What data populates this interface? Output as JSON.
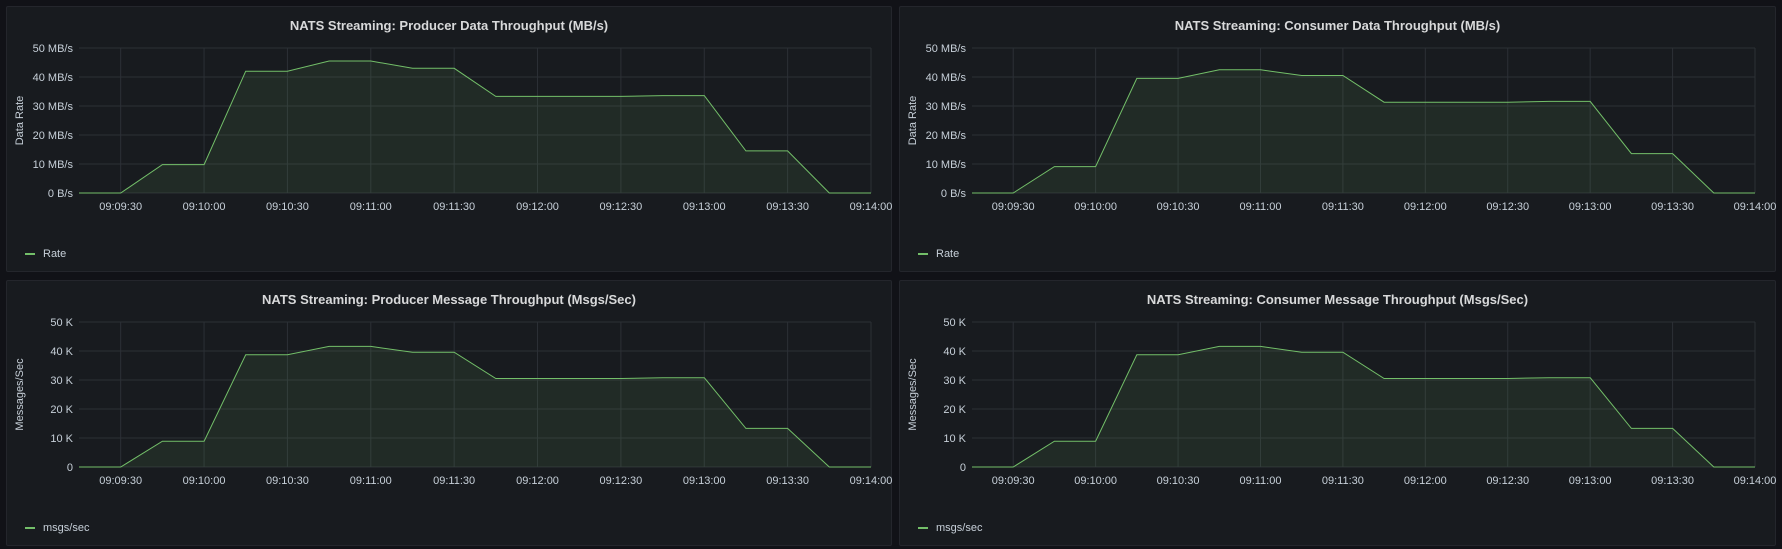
{
  "theme": {
    "line_color": "#73bf69",
    "fill_color": "#73bf69",
    "grid_color": "#2c3036",
    "tick_color": "#c7d0d9"
  },
  "chart_data": [
    {
      "type": "area",
      "title": "NATS Streaming: Producer Data Throughput (MB/s)",
      "ylabel": "Data Rate",
      "xlabel": "",
      "xlim": [
        "09:09:15",
        "09:14:00"
      ],
      "ylim": [
        0,
        50
      ],
      "yticks": [
        "0 B/s",
        "10 MB/s",
        "20 MB/s",
        "30 MB/s",
        "40 MB/s",
        "50 MB/s"
      ],
      "xticks": [
        "09:09:30",
        "09:10:00",
        "09:10:30",
        "09:11:00",
        "09:11:30",
        "09:12:00",
        "09:12:30",
        "09:13:00",
        "09:13:30",
        "09:14:00"
      ],
      "grid": true,
      "legend": "bottom-left",
      "series": [
        {
          "name": "Rate",
          "x": [
            "09:09:15",
            "09:09:30",
            "09:09:45",
            "09:10:00",
            "09:10:15",
            "09:10:30",
            "09:10:45",
            "09:11:00",
            "09:11:15",
            "09:11:30",
            "09:11:45",
            "09:12:00",
            "09:12:15",
            "09:12:30",
            "09:12:45",
            "09:13:00",
            "09:13:15",
            "09:13:30",
            "09:13:45",
            "09:14:00"
          ],
          "values": [
            0,
            0,
            9.8,
            9.8,
            42,
            42,
            45.5,
            45.5,
            43,
            43,
            33.3,
            33.3,
            33.3,
            33.3,
            33.6,
            33.6,
            14.5,
            14.5,
            0,
            0
          ]
        }
      ]
    },
    {
      "type": "area",
      "title": "NATS Streaming: Consumer Data Throughput (MB/s)",
      "ylabel": "Data Rate",
      "xlabel": "",
      "xlim": [
        "09:09:15",
        "09:14:00"
      ],
      "ylim": [
        0,
        50
      ],
      "yticks": [
        "0 B/s",
        "10 MB/s",
        "20 MB/s",
        "30 MB/s",
        "40 MB/s",
        "50 MB/s"
      ],
      "xticks": [
        "09:09:30",
        "09:10:00",
        "09:10:30",
        "09:11:00",
        "09:11:30",
        "09:12:00",
        "09:12:30",
        "09:13:00",
        "09:13:30",
        "09:14:00"
      ],
      "grid": true,
      "legend": "bottom-left",
      "series": [
        {
          "name": "Rate",
          "x": [
            "09:09:15",
            "09:09:30",
            "09:09:45",
            "09:10:00",
            "09:10:15",
            "09:10:30",
            "09:10:45",
            "09:11:00",
            "09:11:15",
            "09:11:30",
            "09:11:45",
            "09:12:00",
            "09:12:15",
            "09:12:30",
            "09:12:45",
            "09:13:00",
            "09:13:15",
            "09:13:30",
            "09:13:45",
            "09:14:00"
          ],
          "values": [
            0,
            0,
            9.1,
            9.1,
            39.5,
            39.5,
            42.5,
            42.5,
            40.5,
            40.5,
            31.3,
            31.3,
            31.3,
            31.3,
            31.6,
            31.6,
            13.6,
            13.6,
            0,
            0
          ]
        }
      ]
    },
    {
      "type": "area",
      "title": "NATS Streaming: Producer Message Throughput (Msgs/Sec)",
      "ylabel": "Messages/Sec",
      "xlabel": "",
      "xlim": [
        "09:09:15",
        "09:14:00"
      ],
      "ylim": [
        0,
        50
      ],
      "yticks": [
        "0",
        "10 K",
        "20 K",
        "30 K",
        "40 K",
        "50 K"
      ],
      "xticks": [
        "09:09:30",
        "09:10:00",
        "09:10:30",
        "09:11:00",
        "09:11:30",
        "09:12:00",
        "09:12:30",
        "09:13:00",
        "09:13:30",
        "09:14:00"
      ],
      "grid": true,
      "legend": "bottom-left",
      "series": [
        {
          "name": "msgs/sec",
          "x": [
            "09:09:15",
            "09:09:30",
            "09:09:45",
            "09:10:00",
            "09:10:15",
            "09:10:30",
            "09:10:45",
            "09:11:00",
            "09:11:15",
            "09:11:30",
            "09:11:45",
            "09:12:00",
            "09:12:15",
            "09:12:30",
            "09:12:45",
            "09:13:00",
            "09:13:15",
            "09:13:30",
            "09:13:45",
            "09:14:00"
          ],
          "values": [
            0,
            0,
            8.9,
            8.9,
            38.7,
            38.7,
            41.6,
            41.6,
            39.6,
            39.6,
            30.5,
            30.5,
            30.5,
            30.5,
            30.8,
            30.8,
            13.3,
            13.3,
            0,
            0
          ]
        }
      ]
    },
    {
      "type": "area",
      "title": "NATS Streaming: Consumer Message Throughput (Msgs/Sec)",
      "ylabel": "Messages/Sec",
      "xlabel": "",
      "xlim": [
        "09:09:15",
        "09:14:00"
      ],
      "ylim": [
        0,
        50
      ],
      "yticks": [
        "0",
        "10 K",
        "20 K",
        "30 K",
        "40 K",
        "50 K"
      ],
      "xticks": [
        "09:09:30",
        "09:10:00",
        "09:10:30",
        "09:11:00",
        "09:11:30",
        "09:12:00",
        "09:12:30",
        "09:13:00",
        "09:13:30",
        "09:14:00"
      ],
      "grid": true,
      "legend": "bottom-left",
      "series": [
        {
          "name": "msgs/sec",
          "x": [
            "09:09:15",
            "09:09:30",
            "09:09:45",
            "09:10:00",
            "09:10:15",
            "09:10:30",
            "09:10:45",
            "09:11:00",
            "09:11:15",
            "09:11:30",
            "09:11:45",
            "09:12:00",
            "09:12:15",
            "09:12:30",
            "09:12:45",
            "09:13:00",
            "09:13:15",
            "09:13:30",
            "09:13:45",
            "09:14:00"
          ],
          "values": [
            0,
            0,
            8.9,
            8.9,
            38.7,
            38.7,
            41.6,
            41.6,
            39.6,
            39.6,
            30.5,
            30.5,
            30.5,
            30.5,
            30.8,
            30.8,
            13.3,
            13.3,
            0,
            0
          ]
        }
      ]
    }
  ]
}
